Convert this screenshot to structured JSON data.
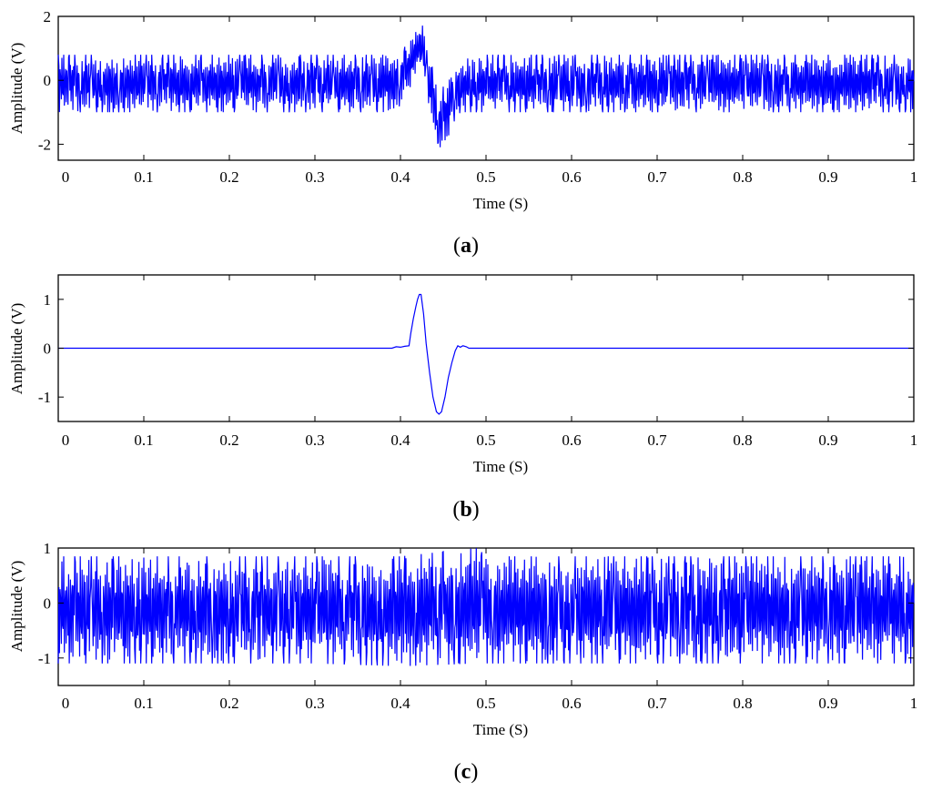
{
  "line_color": "#0000ff",
  "chart_data": [
    {
      "type": "line",
      "caption_letter": "a",
      "xlabel": "Time (S)",
      "ylabel": "Amplitude (V)",
      "xlim": [
        0,
        1
      ],
      "ylim": [
        -2.5,
        2
      ],
      "xticks": [
        0,
        0.1,
        0.2,
        0.3,
        0.4,
        0.5,
        0.6,
        0.7,
        0.8,
        0.9,
        1
      ],
      "xtick_labels": [
        "0",
        "0.1",
        "0.2",
        "0.3",
        "0.4",
        "0.5",
        "0.6",
        "0.7",
        "0.8",
        "0.9",
        "1"
      ],
      "yticks": [
        -2,
        0,
        2
      ],
      "ytick_labels": [
        "-2",
        "0",
        "2"
      ],
      "grid": false,
      "series": [
        {
          "description": "noisy vibration signal with transient pulse near 0.42-0.46 s",
          "x": [
            0.0,
            0.05,
            0.1,
            0.2,
            0.3,
            0.38,
            0.4,
            0.41,
            0.42,
            0.425,
            0.43,
            0.44,
            0.445,
            0.45,
            0.46,
            0.47,
            0.5,
            0.6,
            0.7,
            0.8,
            0.9,
            1.0
          ],
          "envelope_max": [
            0.8,
            0.8,
            0.8,
            0.8,
            0.8,
            0.8,
            0.9,
            1.2,
            1.6,
            2.0,
            1.0,
            0.2,
            -0.5,
            -0.2,
            0.5,
            0.7,
            0.8,
            0.8,
            0.8,
            0.8,
            0.8,
            0.8
          ],
          "envelope_min": [
            -1.0,
            -1.0,
            -1.0,
            -1.0,
            -1.0,
            -1.0,
            -0.8,
            -0.3,
            0.3,
            0.7,
            -0.6,
            -1.7,
            -2.1,
            -2.3,
            -1.4,
            -1.0,
            -1.0,
            -1.0,
            -1.0,
            -1.0,
            -1.0,
            -1.0
          ]
        }
      ]
    },
    {
      "type": "line",
      "caption_letter": "b",
      "xlabel": "Time (S)",
      "ylabel": "Amplitude (V)",
      "xlim": [
        0,
        1
      ],
      "ylim": [
        -1.5,
        1.5
      ],
      "xticks": [
        0,
        0.1,
        0.2,
        0.3,
        0.4,
        0.5,
        0.6,
        0.7,
        0.8,
        0.9,
        1
      ],
      "xtick_labels": [
        "0",
        "0.1",
        "0.2",
        "0.3",
        "0.4",
        "0.5",
        "0.6",
        "0.7",
        "0.8",
        "0.9",
        "1"
      ],
      "yticks": [
        -1,
        0,
        1
      ],
      "ytick_labels": [
        "-1",
        "0",
        "1"
      ],
      "grid": false,
      "series": [
        {
          "description": "extracted transient impulse",
          "x": [
            0.0,
            0.39,
            0.395,
            0.4,
            0.405,
            0.41,
            0.412,
            0.415,
            0.418,
            0.42,
            0.422,
            0.424,
            0.427,
            0.43,
            0.434,
            0.438,
            0.442,
            0.445,
            0.448,
            0.452,
            0.456,
            0.46,
            0.464,
            0.467,
            0.47,
            0.473,
            0.477,
            0.48,
            1.0
          ],
          "y": [
            0.0,
            0.0,
            0.03,
            0.02,
            0.04,
            0.05,
            0.3,
            0.6,
            0.85,
            1.0,
            1.1,
            1.1,
            0.7,
            0.1,
            -0.5,
            -1.0,
            -1.3,
            -1.35,
            -1.3,
            -1.0,
            -0.6,
            -0.3,
            -0.05,
            0.05,
            0.02,
            0.05,
            0.03,
            0.0,
            0.0
          ]
        }
      ]
    },
    {
      "type": "line",
      "caption_letter": "c",
      "xlabel": "Time (S)",
      "ylabel": "Amplitude (V)",
      "xlim": [
        0,
        1
      ],
      "ylim": [
        -1.5,
        1
      ],
      "xticks": [
        0,
        0.1,
        0.2,
        0.3,
        0.4,
        0.5,
        0.6,
        0.7,
        0.8,
        0.9,
        1
      ],
      "xtick_labels": [
        "0",
        "0.1",
        "0.2",
        "0.3",
        "0.4",
        "0.5",
        "0.6",
        "0.7",
        "0.8",
        "0.9",
        "1"
      ],
      "yticks": [
        -1,
        0,
        1
      ],
      "ytick_labels": [
        "-1",
        "0",
        "1"
      ],
      "grid": false,
      "series": [
        {
          "description": "residual noisy signal without transient",
          "x": [
            0.0,
            0.1,
            0.2,
            0.3,
            0.4,
            0.49,
            0.5,
            0.6,
            0.7,
            0.8,
            0.9,
            1.0
          ],
          "envelope_max": [
            0.85,
            0.85,
            0.85,
            0.85,
            0.85,
            1.0,
            0.85,
            0.85,
            0.85,
            0.85,
            0.85,
            0.85
          ],
          "envelope_min": [
            -1.1,
            -1.1,
            -1.1,
            -1.1,
            -1.15,
            -1.1,
            -1.1,
            -1.1,
            -1.1,
            -1.1,
            -1.1,
            -1.1
          ]
        }
      ]
    }
  ]
}
